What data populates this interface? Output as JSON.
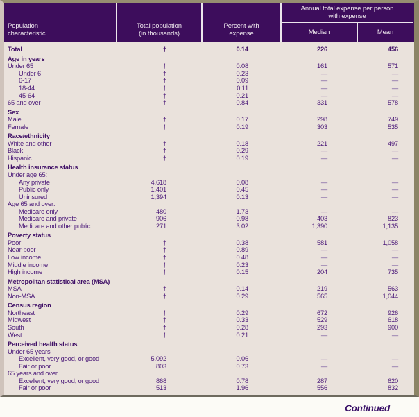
{
  "colors": {
    "header_bg": "#3d0d5c",
    "body_bg": "#eae2dc",
    "text_purple": "#4a1878",
    "frame_olive": "#8c8466",
    "divider_white": "#ece6ec"
  },
  "table": {
    "header": {
      "col1": "Population\ncharacteristic",
      "col2": "Total population\n(in thousands)",
      "col3": "Percent with\nexpense",
      "group": "Annual total expense per person\nwith expense",
      "col4": "Median",
      "col5": "Mean"
    },
    "rows": [
      {
        "label": "Total",
        "bold": true,
        "indent": false,
        "pop": "†",
        "pct": "0.14",
        "median": "226",
        "mean": "456"
      },
      {
        "label": "Age in years",
        "bold": true,
        "indent": false,
        "pop": "",
        "pct": "",
        "median": "",
        "mean": ""
      },
      {
        "label": "Under 65",
        "bold": false,
        "indent": false,
        "pop": "†",
        "pct": "0.08",
        "median": "161",
        "mean": "571"
      },
      {
        "label": "Under 6",
        "bold": false,
        "indent": true,
        "pop": "†",
        "pct": "0.23",
        "median": "—",
        "mean": "—"
      },
      {
        "label": "6-17",
        "bold": false,
        "indent": true,
        "pop": "†",
        "pct": "0.09",
        "median": "—",
        "mean": "—"
      },
      {
        "label": "18-44",
        "bold": false,
        "indent": true,
        "pop": "†",
        "pct": "0.11",
        "median": "—",
        "mean": "—"
      },
      {
        "label": "45-64",
        "bold": false,
        "indent": true,
        "pop": "†",
        "pct": "0.21",
        "median": "—",
        "mean": "—"
      },
      {
        "label": "65 and over",
        "bold": false,
        "indent": false,
        "pop": "†",
        "pct": "0.84",
        "median": "331",
        "mean": "578"
      },
      {
        "label": "Sex",
        "bold": true,
        "indent": false,
        "pop": "",
        "pct": "",
        "median": "",
        "mean": ""
      },
      {
        "label": "Male",
        "bold": false,
        "indent": false,
        "pop": "†",
        "pct": "0.17",
        "median": "298",
        "mean": "749"
      },
      {
        "label": "Female",
        "bold": false,
        "indent": false,
        "pop": "†",
        "pct": "0.19",
        "median": "303",
        "mean": "535"
      },
      {
        "label": "Race/ethnicity",
        "bold": true,
        "indent": false,
        "pop": "",
        "pct": "",
        "median": "",
        "mean": ""
      },
      {
        "label": "White and other",
        "bold": false,
        "indent": false,
        "pop": "†",
        "pct": "0.18",
        "median": "221",
        "mean": "497"
      },
      {
        "label": "Black",
        "bold": false,
        "indent": false,
        "pop": "†",
        "pct": "0.29",
        "median": "—",
        "mean": "—"
      },
      {
        "label": "Hispanic",
        "bold": false,
        "indent": false,
        "pop": "†",
        "pct": "0.19",
        "median": "—",
        "mean": "—"
      },
      {
        "label": "Health insurance status",
        "bold": true,
        "indent": false,
        "pop": "",
        "pct": "",
        "median": "",
        "mean": ""
      },
      {
        "label": "Under age 65:",
        "bold": false,
        "indent": false,
        "pop": "",
        "pct": "",
        "median": "",
        "mean": ""
      },
      {
        "label": "Any private",
        "bold": false,
        "indent": true,
        "pop": "4,618",
        "pct": "0.08",
        "median": "—",
        "mean": "—"
      },
      {
        "label": "Public only",
        "bold": false,
        "indent": true,
        "pop": "1,401",
        "pct": "0.45",
        "median": "—",
        "mean": "—"
      },
      {
        "label": "Uninsured",
        "bold": false,
        "indent": true,
        "pop": "1,394",
        "pct": "0.13",
        "median": "—",
        "mean": "—"
      },
      {
        "label": "Age 65 and over:",
        "bold": false,
        "indent": false,
        "pop": "",
        "pct": "",
        "median": "",
        "mean": ""
      },
      {
        "label": "Medicare only",
        "bold": false,
        "indent": true,
        "pop": "480",
        "pct": "1.73",
        "median": "—",
        "mean": "—"
      },
      {
        "label": "Medicare and private",
        "bold": false,
        "indent": true,
        "pop": "906",
        "pct": "0.98",
        "median": "403",
        "mean": "823"
      },
      {
        "label": "Medicare and other public",
        "bold": false,
        "indent": true,
        "pop": "271",
        "pct": "3.02",
        "median": "1,390",
        "mean": "1,135"
      },
      {
        "label": "Poverty status",
        "bold": true,
        "indent": false,
        "pop": "",
        "pct": "",
        "median": "",
        "mean": ""
      },
      {
        "label": "Poor",
        "bold": false,
        "indent": false,
        "pop": "†",
        "pct": "0.38",
        "median": "581",
        "mean": "1,058"
      },
      {
        "label": "Near-poor",
        "bold": false,
        "indent": false,
        "pop": "†",
        "pct": "0.89",
        "median": "—",
        "mean": "—"
      },
      {
        "label": "Low income",
        "bold": false,
        "indent": false,
        "pop": "†",
        "pct": "0.48",
        "median": "—",
        "mean": "—"
      },
      {
        "label": "Middle income",
        "bold": false,
        "indent": false,
        "pop": "†",
        "pct": "0.23",
        "median": "—",
        "mean": "—"
      },
      {
        "label": "High income",
        "bold": false,
        "indent": false,
        "pop": "†",
        "pct": "0.15",
        "median": "204",
        "mean": "735"
      },
      {
        "label": "Metropolitan statistical area (MSA)",
        "bold": true,
        "indent": false,
        "pop": "",
        "pct": "",
        "median": "",
        "mean": ""
      },
      {
        "label": "MSA",
        "bold": false,
        "indent": false,
        "pop": "†",
        "pct": "0.14",
        "median": "219",
        "mean": "563"
      },
      {
        "label": "Non-MSA",
        "bold": false,
        "indent": false,
        "pop": "†",
        "pct": "0.29",
        "median": "565",
        "mean": "1,044"
      },
      {
        "label": "Census region",
        "bold": true,
        "indent": false,
        "pop": "",
        "pct": "",
        "median": "",
        "mean": ""
      },
      {
        "label": "Northeast",
        "bold": false,
        "indent": false,
        "pop": "†",
        "pct": "0.29",
        "median": "672",
        "mean": "926"
      },
      {
        "label": "Midwest",
        "bold": false,
        "indent": false,
        "pop": "†",
        "pct": "0.33",
        "median": "529",
        "mean": "618"
      },
      {
        "label": "South",
        "bold": false,
        "indent": false,
        "pop": "†",
        "pct": "0.28",
        "median": "293",
        "mean": "900"
      },
      {
        "label": "West",
        "bold": false,
        "indent": false,
        "pop": "†",
        "pct": "0.21",
        "median": "—",
        "mean": "—"
      },
      {
        "label": "Perceived health status",
        "bold": true,
        "indent": false,
        "pop": "",
        "pct": "",
        "median": "",
        "mean": ""
      },
      {
        "label": "Under 65 years",
        "bold": false,
        "indent": false,
        "pop": "",
        "pct": "",
        "median": "",
        "mean": ""
      },
      {
        "label": "Excellent, very good, or good",
        "bold": false,
        "indent": true,
        "pop": "5,092",
        "pct": "0.06",
        "median": "—",
        "mean": "—"
      },
      {
        "label": "Fair or poor",
        "bold": false,
        "indent": true,
        "pop": "803",
        "pct": "0.73",
        "median": "—",
        "mean": "—"
      },
      {
        "label": "65 years and over",
        "bold": false,
        "indent": false,
        "pop": "",
        "pct": "",
        "median": "",
        "mean": ""
      },
      {
        "label": "Excellent, very good, or good",
        "bold": false,
        "indent": true,
        "pop": "868",
        "pct": "0.78",
        "median": "287",
        "mean": "620"
      },
      {
        "label": "Fair or poor",
        "bold": false,
        "indent": true,
        "pop": "513",
        "pct": "1.96",
        "median": "556",
        "mean": "832"
      }
    ]
  },
  "footer": {
    "continued_label": "Continued"
  }
}
